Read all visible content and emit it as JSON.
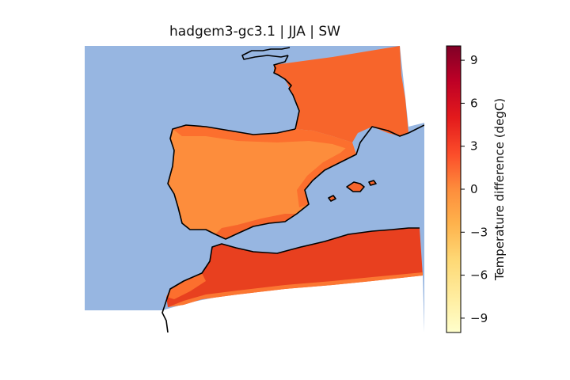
{
  "figure": {
    "title": "hadgem3-gc3.1 | JJA | SW"
  },
  "colorbar": {
    "label": "Temperature difference (degC)",
    "ticks": [
      "9",
      "6",
      "3",
      "0",
      "−3",
      "−6",
      "−9"
    ],
    "range": [
      -10,
      10
    ],
    "colormap": "YlOrRd",
    "levels": 20
  },
  "colors": {
    "ocean": "#97b6e1",
    "outside_domain": "#ffffff",
    "coastline": "#000000",
    "iberia_interior": "#fd8d3c",
    "iberia_coast": "#fc6f2e",
    "france": "#f7652b",
    "north_africa": "#e8401f",
    "africa_south_edge": "#fd7d34"
  }
}
